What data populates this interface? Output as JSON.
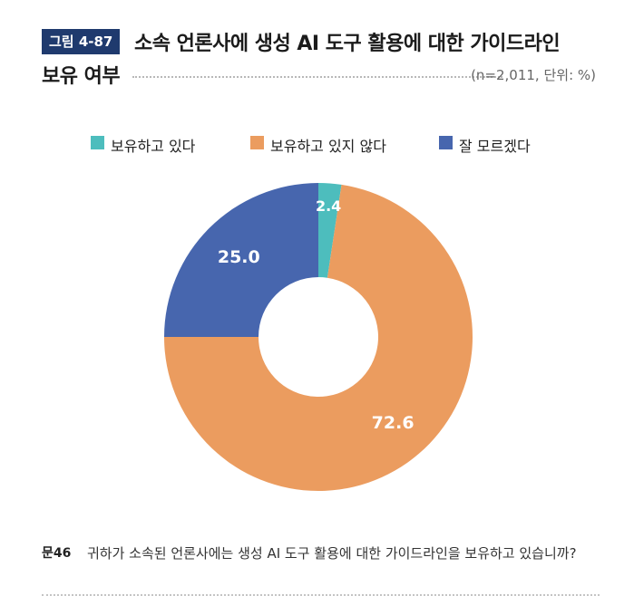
{
  "header": {
    "figure_label": "그림 4-87",
    "title_line1": "소속 언론사에 생성 AI 도구 활용에 대한 가이드라인",
    "title_line2": "보유 여부",
    "note": "(n=2,011, 단위: %)"
  },
  "chart_data": {
    "type": "pie",
    "donut": true,
    "unit": "%",
    "n": 2011,
    "legend_placement": "top",
    "categories": [
      "보유하고 있다",
      "보유하고 있지 않다",
      "잘 모르겠다"
    ],
    "values": [
      2.4,
      72.6,
      25.0
    ],
    "value_labels": [
      "2.4",
      "72.6",
      "25.0"
    ],
    "colors": [
      "#4dbdbd",
      "#eb9c5f",
      "#4766ae"
    ],
    "start_angle_deg": 0,
    "direction": "clockwise"
  },
  "question": {
    "label": "문46",
    "text": "귀하가 소속된 언론사에는 생성 AI 도구 활용에 대한 가이드라인을 보유하고 있습니까?"
  }
}
